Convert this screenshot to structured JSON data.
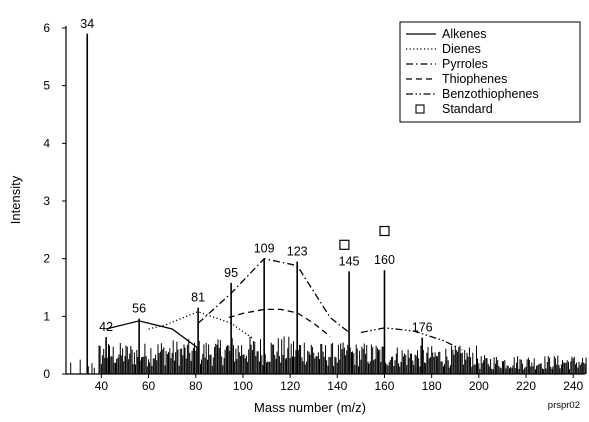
{
  "chart_data": {
    "type": "line",
    "xlabel": "Mass number (m/z)",
    "ylabel": "Intensity",
    "xlim": [
      25,
      245
    ],
    "ylim": [
      0,
      6
    ],
    "xticks": [
      40,
      60,
      80,
      100,
      120,
      140,
      160,
      180,
      200,
      220,
      240
    ],
    "yticks": [
      0,
      1,
      2,
      3,
      4,
      5,
      6
    ],
    "grid": false,
    "legend_position": "top-right",
    "code_label": "prspr02",
    "legend": [
      {
        "name": "Alkenes",
        "style": "solid"
      },
      {
        "name": "Dienes",
        "style": "dotted"
      },
      {
        "name": "Pyrroles",
        "style": "dashdot"
      },
      {
        "name": "Thiophenes",
        "style": "dashed"
      },
      {
        "name": "Benzothiophenes",
        "style": "dashdotdot"
      },
      {
        "name": "Standard",
        "style": "square"
      }
    ],
    "series": [
      {
        "name": "Alkenes",
        "style": "solid",
        "x": [
          42,
          56,
          70,
          81
        ],
        "y": [
          0.78,
          0.92,
          0.78,
          0.45
        ]
      },
      {
        "name": "Dienes",
        "style": "dotted",
        "x": [
          60,
          67,
          81,
          95,
          104
        ],
        "y": [
          0.78,
          0.85,
          1.08,
          0.88,
          0.62
        ]
      },
      {
        "name": "Pyrroles",
        "style": "dashdot",
        "x": [
          81,
          95,
          109,
          123,
          137,
          145
        ],
        "y": [
          0.88,
          1.4,
          2.0,
          1.88,
          0.98,
          0.72
        ]
      },
      {
        "name": "Thiophenes",
        "style": "dashed",
        "x": [
          94,
          100,
          109,
          116,
          123,
          130,
          137
        ],
        "y": [
          0.98,
          1.05,
          1.12,
          1.12,
          1.06,
          0.88,
          0.65
        ]
      },
      {
        "name": "Benzothiophenes",
        "style": "dashdotdot",
        "x": [
          150,
          160,
          172,
          185,
          193
        ],
        "y": [
          0.72,
          0.8,
          0.75,
          0.58,
          0.42
        ]
      }
    ],
    "peaks": [
      {
        "x": 34,
        "y": 5.9,
        "label": "34"
      },
      {
        "x": 42,
        "y": 0.64,
        "label": "42"
      },
      {
        "x": 56,
        "y": 0.96,
        "label": "56"
      },
      {
        "x": 81,
        "y": 1.15,
        "label": "81"
      },
      {
        "x": 95,
        "y": 1.58,
        "label": "95"
      },
      {
        "x": 109,
        "y": 2.0,
        "label": "109"
      },
      {
        "x": 123,
        "y": 1.95,
        "label": "123"
      },
      {
        "x": 145,
        "y": 1.78,
        "label": "145"
      },
      {
        "x": 160,
        "y": 1.8,
        "label": "160"
      },
      {
        "x": 176,
        "y": 0.63,
        "label": "176"
      }
    ],
    "standard_points": [
      {
        "x": 143,
        "y": 2.24
      },
      {
        "x": 160,
        "y": 2.48
      }
    ]
  }
}
